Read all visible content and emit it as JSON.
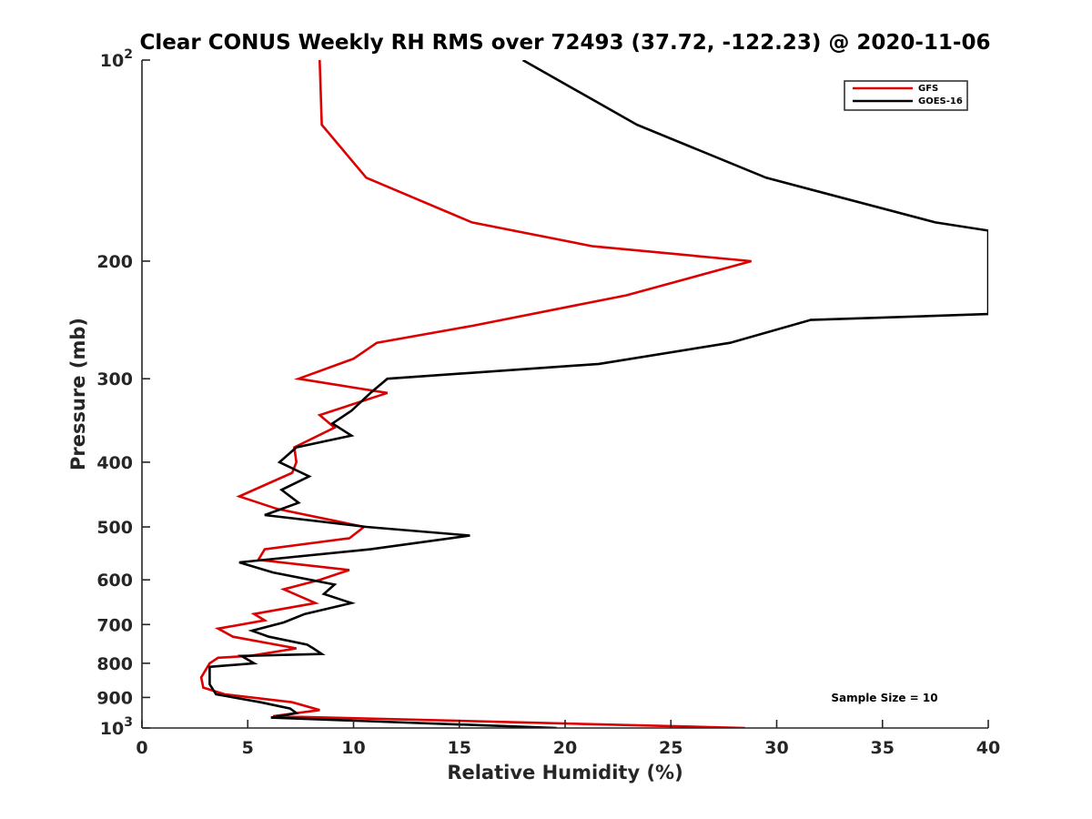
{
  "chart_data": {
    "type": "line",
    "title": "Clear CONUS Weekly RH RMS over 72493 (37.72, -122.23) @ 2020-11-06",
    "xlabel": "Relative Humidity (%)",
    "ylabel": "Pressure (mb)",
    "xlim": [
      0,
      40
    ],
    "ylim": [
      100,
      1000
    ],
    "y_scale": "log",
    "y_reversed": true,
    "grid": false,
    "legend_position": "top-right",
    "x_ticks": [
      {
        "value": 0,
        "label": "0"
      },
      {
        "value": 5,
        "label": "5"
      },
      {
        "value": 10,
        "label": "10"
      },
      {
        "value": 15,
        "label": "15"
      },
      {
        "value": 20,
        "label": "20"
      },
      {
        "value": 25,
        "label": "25"
      },
      {
        "value": 30,
        "label": "30"
      },
      {
        "value": 35,
        "label": "35"
      },
      {
        "value": 40,
        "label": "40"
      }
    ],
    "y_ticks": [
      {
        "value": 100,
        "label": "10",
        "sup": "2"
      },
      {
        "value": 200,
        "label": "200",
        "sup": ""
      },
      {
        "value": 300,
        "label": "300",
        "sup": ""
      },
      {
        "value": 400,
        "label": "400",
        "sup": ""
      },
      {
        "value": 500,
        "label": "500",
        "sup": ""
      },
      {
        "value": 600,
        "label": "600",
        "sup": ""
      },
      {
        "value": 700,
        "label": "700",
        "sup": ""
      },
      {
        "value": 800,
        "label": "800",
        "sup": ""
      },
      {
        "value": 900,
        "label": "900",
        "sup": ""
      },
      {
        "value": 1000,
        "label": "10",
        "sup": "3"
      }
    ],
    "annotation": "Sample Size = 10",
    "series": [
      {
        "name": "GFS",
        "color": "#dd0000",
        "points": [
          [
            8.4,
            100
          ],
          [
            8.5,
            125
          ],
          [
            10.6,
            150
          ],
          [
            15.6,
            175
          ],
          [
            21.3,
            190
          ],
          [
            28.8,
            200
          ],
          [
            22.9,
            225
          ],
          [
            15.6,
            250
          ],
          [
            11.1,
            265
          ],
          [
            10.0,
            280
          ],
          [
            7.4,
            300
          ],
          [
            11.6,
            315
          ],
          [
            8.4,
            340
          ],
          [
            9.1,
            355
          ],
          [
            7.2,
            380
          ],
          [
            7.3,
            400
          ],
          [
            7.1,
            415
          ],
          [
            4.6,
            450
          ],
          [
            6.4,
            470
          ],
          [
            10.5,
            500
          ],
          [
            9.8,
            520
          ],
          [
            5.8,
            540
          ],
          [
            5.5,
            560
          ],
          [
            9.8,
            580
          ],
          [
            8.4,
            600
          ],
          [
            6.7,
            620
          ],
          [
            8.2,
            650
          ],
          [
            5.3,
            675
          ],
          [
            5.8,
            690
          ],
          [
            3.6,
            710
          ],
          [
            4.3,
            730
          ],
          [
            7.3,
            760
          ],
          [
            5.1,
            780
          ],
          [
            3.6,
            785
          ],
          [
            3.2,
            800
          ],
          [
            2.8,
            840
          ],
          [
            2.9,
            870
          ],
          [
            3.9,
            890
          ],
          [
            7.1,
            915
          ],
          [
            8.4,
            940
          ],
          [
            6.2,
            960
          ],
          [
            28.5,
            1000
          ]
        ]
      },
      {
        "name": "GOES-16",
        "color": "#000000",
        "points": [
          [
            18.0,
            100
          ],
          [
            23.4,
            125
          ],
          [
            29.5,
            150
          ],
          [
            37.5,
            175
          ],
          [
            40.0,
            180
          ],
          [
            40.0,
            240
          ],
          [
            31.6,
            245
          ],
          [
            27.8,
            265
          ],
          [
            21.6,
            285
          ],
          [
            11.6,
            300
          ],
          [
            10.8,
            315
          ],
          [
            9.9,
            335
          ],
          [
            9.0,
            350
          ],
          [
            9.9,
            365
          ],
          [
            7.3,
            380
          ],
          [
            6.5,
            400
          ],
          [
            7.9,
            420
          ],
          [
            6.6,
            440
          ],
          [
            7.4,
            460
          ],
          [
            5.8,
            480
          ],
          [
            10.6,
            500
          ],
          [
            15.5,
            515
          ],
          [
            10.8,
            540
          ],
          [
            4.6,
            565
          ],
          [
            6.2,
            585
          ],
          [
            9.1,
            610
          ],
          [
            8.6,
            630
          ],
          [
            9.9,
            650
          ],
          [
            7.7,
            675
          ],
          [
            6.7,
            695
          ],
          [
            5.2,
            715
          ],
          [
            6.0,
            730
          ],
          [
            7.8,
            750
          ],
          [
            8.1,
            760
          ],
          [
            8.5,
            775
          ],
          [
            4.7,
            780
          ],
          [
            5.3,
            800
          ],
          [
            3.2,
            810
          ],
          [
            3.2,
            840
          ],
          [
            3.2,
            860
          ],
          [
            3.5,
            890
          ],
          [
            5.6,
            915
          ],
          [
            7.0,
            935
          ],
          [
            7.3,
            950
          ],
          [
            6.1,
            965
          ],
          [
            19.6,
            1000
          ]
        ]
      }
    ]
  }
}
